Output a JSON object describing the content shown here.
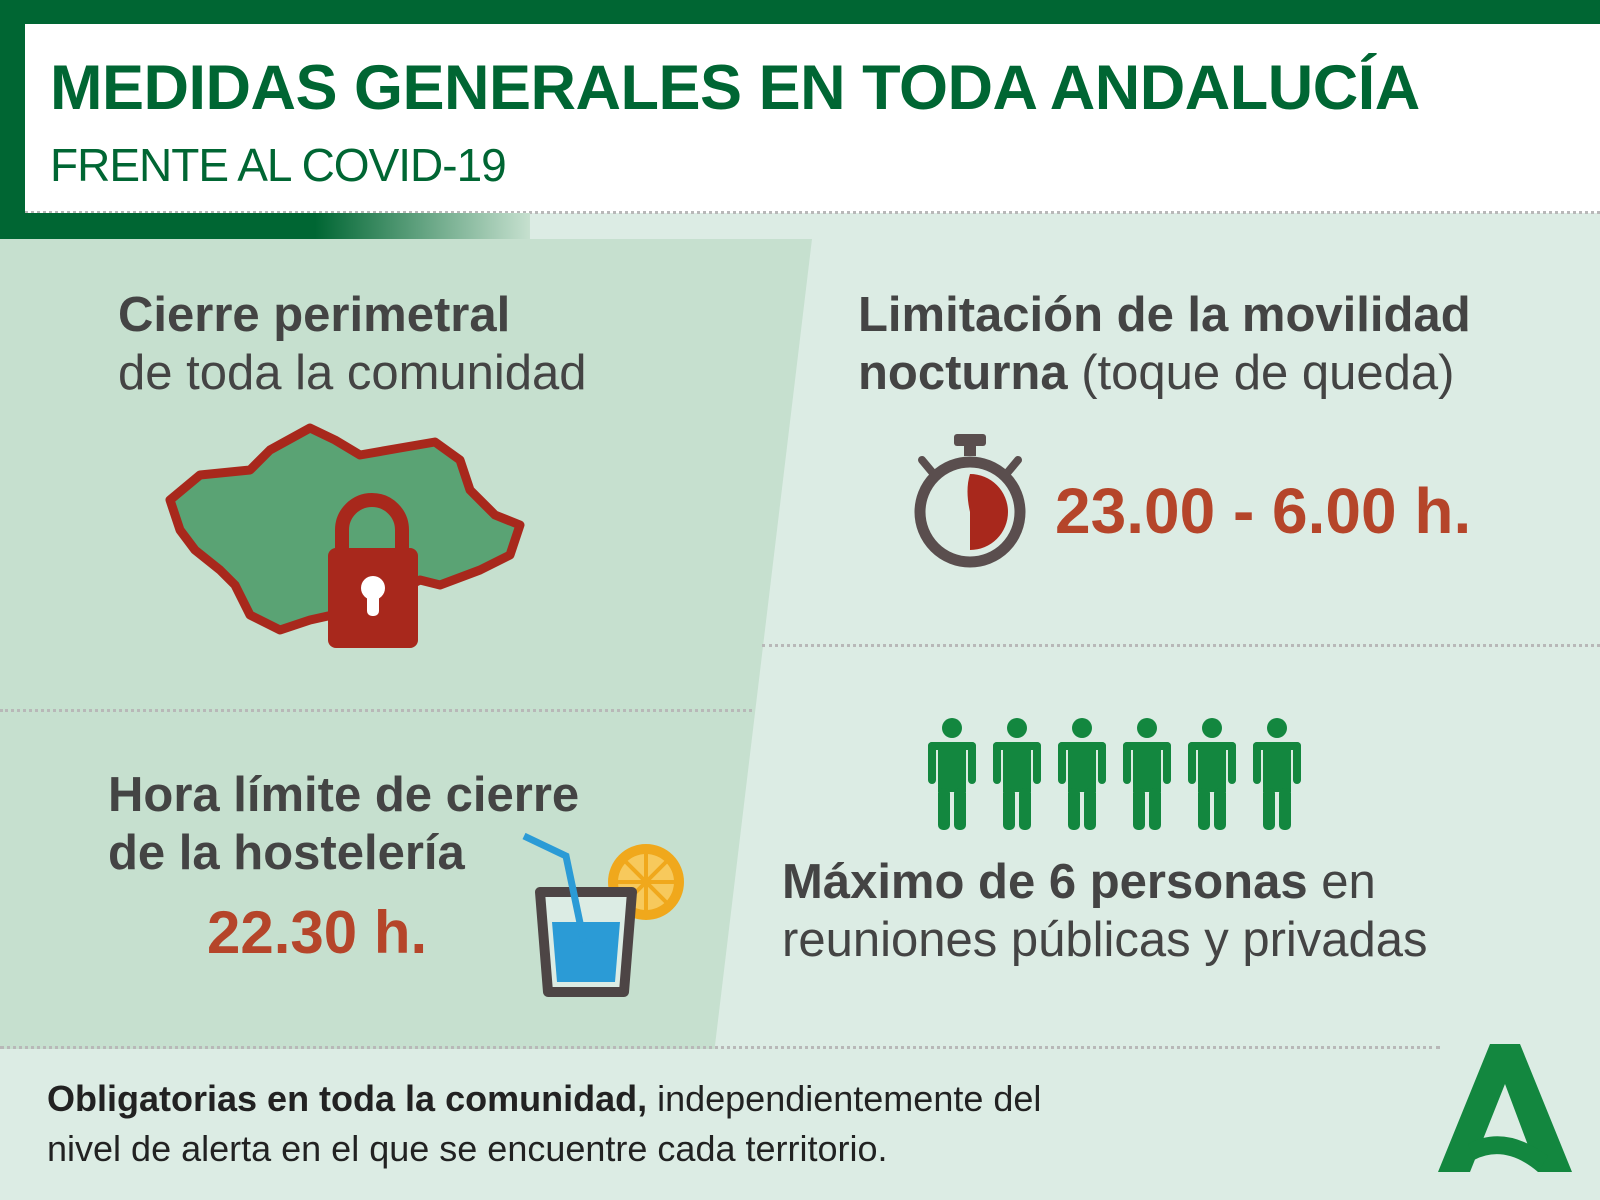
{
  "header": {
    "title": "MEDIDAS GENERALES EN TODA ANDALUCÍA",
    "subtitle": "FRENTE AL COVID-19"
  },
  "colors": {
    "brand_green": "#006633",
    "accent_red": "#b5452a",
    "people_green": "#13873f",
    "text_gray": "#444444",
    "panel_left": "#c6e0cf",
    "panel_right": "#dcece4"
  },
  "measures": {
    "perimeter": {
      "title_bold": "Cierre perimetral",
      "title_rest": "de toda la comunidad",
      "icon": "andalusia-map-lock-icon"
    },
    "curfew": {
      "title_bold": "Limitación de la movilidad",
      "line2_bold": "nocturna",
      "line2_rest": " (toque de queda)",
      "time": "23.00 - 6.00 h.",
      "icon": "stopwatch-icon"
    },
    "hospitality": {
      "line1": "Hora límite de cierre",
      "line2": "de la hostelería",
      "time": "22.30 h.",
      "icon": "drink-glass-icon"
    },
    "gatherings": {
      "bold": "Máximo de 6 personas",
      "rest": " en",
      "line2": "reuniones públicas y privadas",
      "people_count": 6,
      "icon": "person-icon"
    }
  },
  "footer": {
    "bold": "Obligatorias en toda la comunidad,",
    "rest": " independientemente del",
    "line2": "nivel de alerta en el que se encuentre cada territorio.",
    "logo": "junta-de-andalucia-logo"
  }
}
